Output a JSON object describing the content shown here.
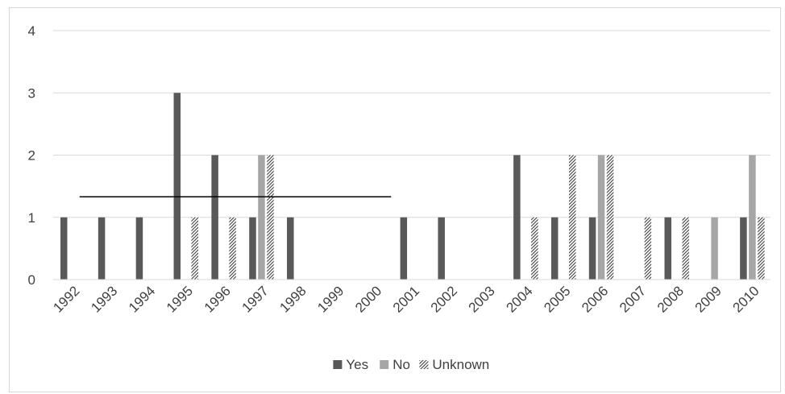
{
  "chart_data": {
    "type": "bar",
    "categories": [
      "1992",
      "1993",
      "1994",
      "1995",
      "1996",
      "1997",
      "1998",
      "1999",
      "2000",
      "2001",
      "2002",
      "2003",
      "2004",
      "2005",
      "2006",
      "2007",
      "2008",
      "2009",
      "2010"
    ],
    "series": [
      {
        "name": "Yes",
        "values": [
          1,
          1,
          1,
          3,
          2,
          1,
          1,
          0,
          0,
          1,
          1,
          0,
          2,
          1,
          1,
          0,
          1,
          0,
          1
        ],
        "color": "#595959",
        "pattern": "solid"
      },
      {
        "name": "No",
        "values": [
          0,
          0,
          0,
          0,
          0,
          2,
          0,
          0,
          0,
          0,
          0,
          0,
          0,
          0,
          2,
          0,
          0,
          1,
          2
        ],
        "color": "#a6a6a6",
        "pattern": "solid"
      },
      {
        "name": "Unknown",
        "values": [
          0,
          0,
          0,
          1,
          1,
          2,
          0,
          0,
          0,
          0,
          0,
          0,
          1,
          2,
          2,
          1,
          1,
          0,
          1
        ],
        "color": "#404040",
        "pattern": "diagonal-hatch"
      }
    ],
    "ylim": [
      0,
      4
    ],
    "yticks": [
      0,
      1,
      2,
      3,
      4
    ],
    "grid": true,
    "legend_position": "bottom",
    "title": "",
    "xlabel": "",
    "ylabel": "",
    "annotations": [
      {
        "type": "horizontal-line",
        "y": 1.33,
        "x_from": "1992",
        "x_to": "2000",
        "color": "#000000"
      }
    ]
  }
}
